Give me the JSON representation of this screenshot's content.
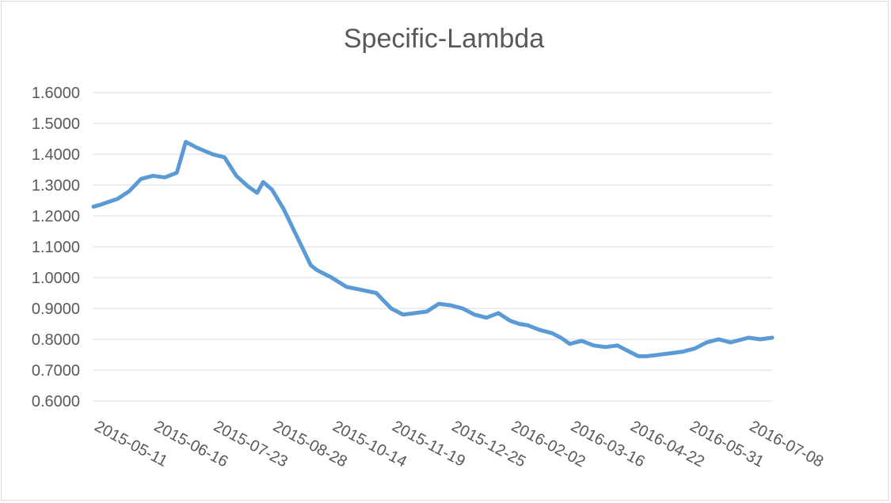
{
  "chart_data": {
    "type": "line",
    "title": "Specific-Lambda",
    "xlabel": "",
    "ylabel": "",
    "ylim": [
      0.6,
      1.6
    ],
    "yticks": [
      "0.6000",
      "0.7000",
      "0.8000",
      "0.9000",
      "1.0000",
      "1.1000",
      "1.2000",
      "1.3000",
      "1.4000",
      "1.5000",
      "1.6000"
    ],
    "xticks": [
      "2015-05-11",
      "2015-06-16",
      "2015-07-23",
      "2015-08-28",
      "2015-10-14",
      "2015-11-19",
      "2015-12-25",
      "2016-02-02",
      "2016-03-16",
      "2016-04-22",
      "2016-05-31",
      "2016-07-08"
    ],
    "grid": true,
    "legend": "none",
    "color": "#5b9bd5",
    "series": [
      {
        "x": [
          0,
          0.1,
          0.25,
          0.4,
          0.6,
          0.8,
          1.0,
          1.2,
          1.4,
          1.55,
          1.75,
          2.0,
          2.2,
          2.4,
          2.6,
          2.75,
          2.85,
          3.0,
          3.2,
          3.4,
          3.55,
          3.65,
          3.75,
          4.0,
          4.25,
          4.5,
          4.75,
          5.0,
          5.2,
          5.4,
          5.6,
          5.8,
          6.0,
          6.2,
          6.4,
          6.6,
          6.8,
          7.0,
          7.15,
          7.3,
          7.5,
          7.7,
          7.85,
          8.0,
          8.2,
          8.4,
          8.6,
          8.8,
          9.0,
          9.15,
          9.3,
          9.5,
          9.7,
          9.9,
          10.1,
          10.3,
          10.5,
          10.7,
          10.9,
          11.0,
          11.2,
          11.4
        ],
        "y": [
          1.23,
          1.235,
          1.245,
          1.255,
          1.28,
          1.32,
          1.33,
          1.325,
          1.34,
          1.44,
          1.42,
          1.4,
          1.39,
          1.33,
          1.295,
          1.275,
          1.31,
          1.285,
          1.22,
          1.14,
          1.08,
          1.04,
          1.025,
          1.0,
          0.97,
          0.96,
          0.95,
          0.9,
          0.88,
          0.885,
          0.89,
          0.915,
          0.91,
          0.9,
          0.88,
          0.87,
          0.885,
          0.86,
          0.85,
          0.845,
          0.83,
          0.82,
          0.805,
          0.785,
          0.795,
          0.78,
          0.775,
          0.78,
          0.76,
          0.745,
          0.745,
          0.75,
          0.755,
          0.76,
          0.77,
          0.79,
          0.8,
          0.79,
          0.8,
          0.805,
          0.8,
          0.805
        ]
      }
    ]
  }
}
